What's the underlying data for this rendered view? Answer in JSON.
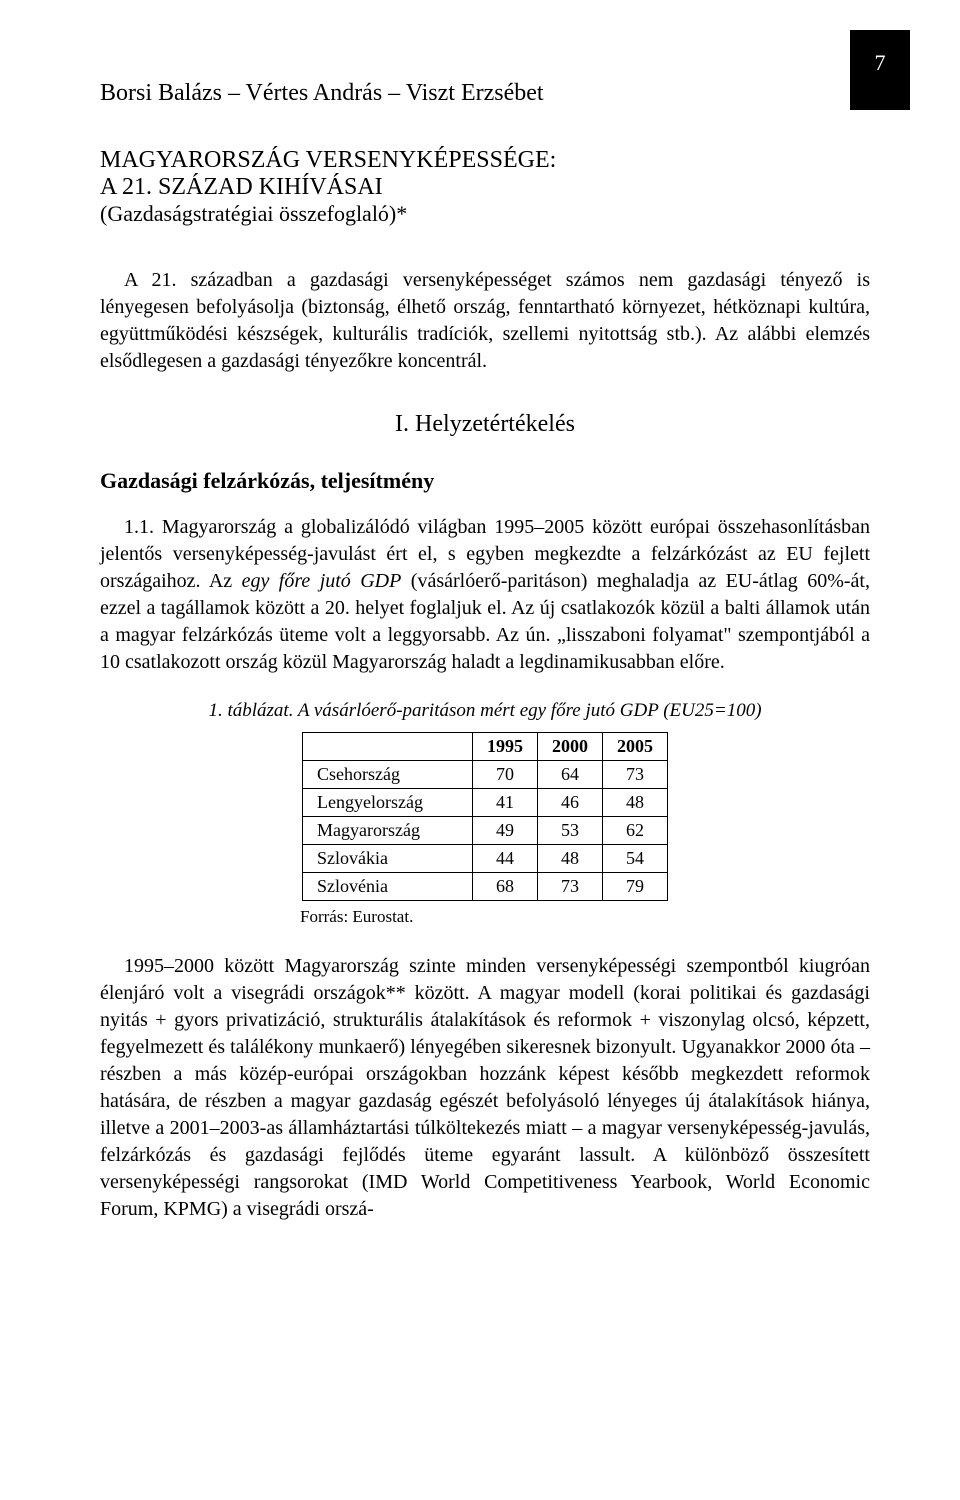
{
  "page_number": "7",
  "authors": "Borsi Balázs – Vértes András – Viszt Erzsébet",
  "title_line1": "MAGYARORSZÁG VERSENYKÉPESSÉGE:",
  "title_line2": "A 21. SZÁZAD KIHÍVÁSAI",
  "subtitle": "(Gazdaságstratégiai összefoglaló)*",
  "intro": "A 21. században a gazdasági versenyképességet számos nem gazdasági tényező is lényegesen befolyásolja (biztonság, élhető ország, fenntartható környezet, hétköznapi kultúra, együttműködési készségek, kulturális tradíciók, szellemi nyitottság stb.). Az alábbi elemzés elsődlegesen a gazdasági tényezőkre koncentrál.",
  "section_heading": "I. Helyzetértékelés",
  "subsection_heading": "Gazdasági felzárkózás, teljesítmény",
  "para1_a": "1.1. Magyarország a globalizálódó világban 1995–2005 között európai összehasonlításban jelentős versenyképesség-javulást ért el, s egyben megkezdte a felzárkózást az EU fejlett országaihoz. Az ",
  "para1_italic": "egy főre jutó GDP",
  "para1_b": " (vásárlóerő-paritáson) meghaladja az EU-átlag 60%-át, ezzel a tagállamok között a 20. helyet foglaljuk el. Az új csatlakozók közül a balti államok után a magyar felzárkózás üteme volt a leggyorsabb. Az ún. „lisszaboni folyamat\" szempontjából a 10 csatlakozott ország közül Magyarország haladt a legdinamikusabban előre.",
  "table": {
    "caption": "1. táblázat. A vásárlóerő-paritáson mért egy főre jutó GDP (EU25=100)",
    "columns": [
      "",
      "1995",
      "2000",
      "2005"
    ],
    "rows": [
      [
        "Csehország",
        "70",
        "64",
        "73"
      ],
      [
        "Lengyelország",
        "41",
        "46",
        "48"
      ],
      [
        "Magyarország",
        "49",
        "53",
        "62"
      ],
      [
        "Szlovákia",
        "44",
        "48",
        "54"
      ],
      [
        "Szlovénia",
        "68",
        "73",
        "79"
      ]
    ],
    "source": "Forrás: Eurostat."
  },
  "para2": "1995–2000 között Magyarország szinte minden versenyképességi szempontból kiugróan élenjáró volt a visegrádi országok** között. A magyar modell (korai politikai és gazdasági nyitás + gyors privatizáció, strukturális átalakítások és reformok + viszonylag olcsó, képzett, fegyelmezett és találékony munkaerő) lényegében sikeresnek bizonyult. Ugyanakkor 2000 óta – részben a más közép-európai országokban hozzánk képest később megkezdett reformok hatására, de részben a magyar gazdaság egészét befolyásoló lényeges új átalakítások hiánya, illetve a 2001–2003-as államháztartási túlköltekezés miatt – a magyar versenyképesség-javulás, felzárkózás és gazdasági fejlődés üteme egyaránt lassult. A különböző összesített versenyképességi rangsorokat (IMD World Competitiveness Yearbook, World Economic Forum, KPMG) a visegrádi orszá-"
}
